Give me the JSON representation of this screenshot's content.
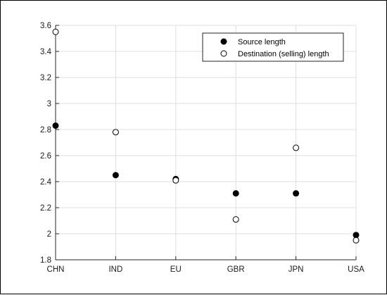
{
  "chart_data": {
    "type": "scatter",
    "categories": [
      "CHN",
      "IND",
      "EU",
      "GBR",
      "JPN",
      "USA"
    ],
    "series": [
      {
        "name": "Source length",
        "marker": "filled-circle",
        "color": "#000000",
        "values": [
          2.83,
          2.45,
          2.42,
          2.31,
          2.31,
          1.99
        ]
      },
      {
        "name": "Destination (selling) length",
        "marker": "open-circle",
        "color": "#000000",
        "values": [
          3.55,
          2.78,
          2.41,
          2.11,
          2.66,
          1.95
        ]
      }
    ],
    "ylim": [
      1.8,
      3.6
    ],
    "yticks": [
      "1.8",
      "2",
      "2.2",
      "2.4",
      "2.6",
      "2.8",
      "3",
      "3.2",
      "3.4",
      "3.6"
    ],
    "grid": true,
    "legend_position": "top-right",
    "title": "",
    "xlabel": "",
    "ylabel": ""
  }
}
